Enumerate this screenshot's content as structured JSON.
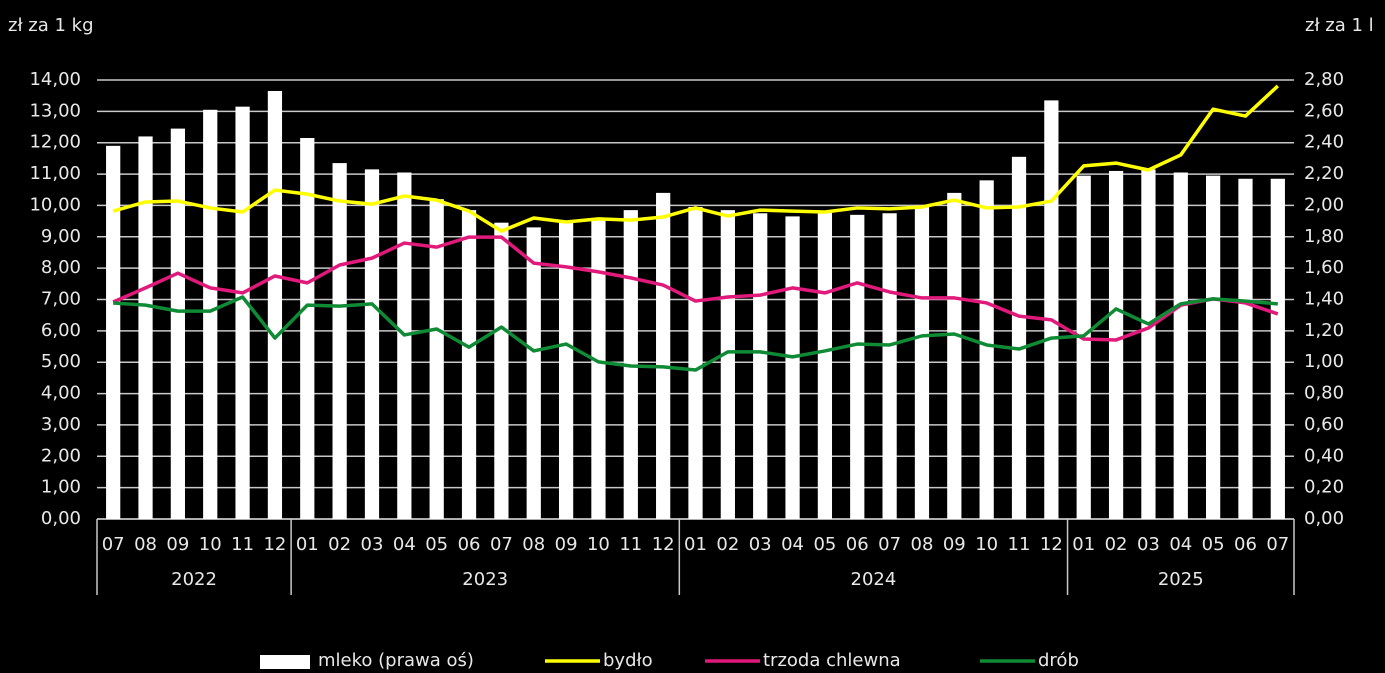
{
  "chart_data": {
    "type": "bar",
    "y_label": "zł za 1 kg",
    "y2_label": "zł za 1 l",
    "category_groups": [
      {
        "name": "2022",
        "categories": [
          "07",
          "08",
          "09",
          "10",
          "11",
          "12"
        ]
      },
      {
        "name": "2023",
        "categories": [
          "01",
          "02",
          "03",
          "04",
          "05",
          "06",
          "07",
          "08",
          "09",
          "10",
          "11",
          "12"
        ]
      },
      {
        "name": "2024",
        "categories": [
          "01",
          "02",
          "03",
          "04",
          "05",
          "06",
          "07",
          "08",
          "09",
          "10",
          "11",
          "12"
        ]
      },
      {
        "name": "2025",
        "categories": [
          "01",
          "02",
          "03",
          "04",
          "05",
          "06",
          "07"
        ]
      }
    ],
    "ylim": [
      0,
      14
    ],
    "yticks": [
      {
        "value": 0,
        "label": "0,00"
      },
      {
        "value": 1,
        "label": "1,00"
      },
      {
        "value": 2,
        "label": "2,00"
      },
      {
        "value": 3,
        "label": "3,00"
      },
      {
        "value": 4,
        "label": "4,00"
      },
      {
        "value": 5,
        "label": "5,00"
      },
      {
        "value": 6,
        "label": "6,00"
      },
      {
        "value": 7,
        "label": "7,00"
      },
      {
        "value": 8,
        "label": "8,00"
      },
      {
        "value": 9,
        "label": "9,00"
      },
      {
        "value": 10,
        "label": "10,00"
      },
      {
        "value": 11,
        "label": "11,00"
      },
      {
        "value": 12,
        "label": "12,00"
      },
      {
        "value": 13,
        "label": "13,00"
      },
      {
        "value": 14,
        "label": "14,00"
      }
    ],
    "y2lim": [
      0,
      2.8
    ],
    "y2ticks": [
      {
        "value": 0,
        "label": "0,00"
      },
      {
        "value": 0.2,
        "label": "0,20"
      },
      {
        "value": 0.4,
        "label": "0,40"
      },
      {
        "value": 0.6,
        "label": "0,60"
      },
      {
        "value": 0.8,
        "label": "0,80"
      },
      {
        "value": 1,
        "label": "1,00"
      },
      {
        "value": 1.2,
        "label": "1,20"
      },
      {
        "value": 1.4,
        "label": "1,40"
      },
      {
        "value": 1.6,
        "label": "1,60"
      },
      {
        "value": 1.8,
        "label": "1,80"
      },
      {
        "value": 2,
        "label": "2,00"
      },
      {
        "value": 2.2,
        "label": "2,20"
      },
      {
        "value": 2.4,
        "label": "2,40"
      },
      {
        "value": 2.6,
        "label": "2,60"
      },
      {
        "value": 2.8,
        "label": "2,80"
      }
    ],
    "grid": true,
    "series": [
      {
        "name": "mleko (prawa oś)",
        "type": "bar",
        "axis": "y2",
        "color": "#ffffff",
        "values": [
          2.38,
          2.44,
          2.49,
          2.61,
          2.63,
          2.73,
          2.43,
          2.27,
          2.23,
          2.21,
          2.04,
          1.97,
          1.89,
          1.86,
          1.89,
          1.92,
          1.97,
          2.08,
          1.99,
          1.97,
          1.95,
          1.93,
          1.96,
          1.94,
          1.95,
          2.0,
          2.08,
          2.16,
          2.31,
          2.67,
          2.19,
          2.22,
          2.23,
          2.21,
          2.19,
          2.17,
          2.17
        ]
      },
      {
        "name": "bydło",
        "type": "line",
        "color": "#ffff00",
        "values": [
          9.82,
          10.11,
          10.14,
          9.92,
          9.79,
          10.49,
          10.36,
          10.14,
          10.04,
          10.3,
          10.17,
          9.82,
          9.18,
          9.6,
          9.47,
          9.57,
          9.53,
          9.63,
          9.92,
          9.66,
          9.85,
          9.82,
          9.79,
          9.92,
          9.89,
          9.95,
          10.17,
          9.92,
          9.95,
          10.14,
          11.26,
          11.35,
          11.13,
          11.61,
          13.07,
          12.85,
          13.81
        ]
      },
      {
        "name": "trzoda chlewna",
        "type": "line",
        "color": "#e0197a",
        "values": [
          6.92,
          7.37,
          7.84,
          7.37,
          7.21,
          7.75,
          7.53,
          8.1,
          8.32,
          8.8,
          8.67,
          8.99,
          8.99,
          8.16,
          8.04,
          7.88,
          7.69,
          7.46,
          6.95,
          7.08,
          7.14,
          7.37,
          7.21,
          7.53,
          7.24,
          7.05,
          7.05,
          6.89,
          6.47,
          6.35,
          5.74,
          5.71,
          6.09,
          6.82,
          7.02,
          6.89,
          6.54
        ]
      },
      {
        "name": "drób",
        "type": "line",
        "color": "#0f8a35",
        "values": [
          6.89,
          6.82,
          6.63,
          6.63,
          7.08,
          5.77,
          6.82,
          6.79,
          6.86,
          5.87,
          6.06,
          5.48,
          6.12,
          5.36,
          5.58,
          5.01,
          4.88,
          4.85,
          4.75,
          5.33,
          5.33,
          5.17,
          5.36,
          5.58,
          5.55,
          5.84,
          5.9,
          5.55,
          5.42,
          5.77,
          5.84,
          6.7,
          6.22,
          6.86,
          7.02,
          6.95,
          6.86
        ]
      }
    ]
  }
}
